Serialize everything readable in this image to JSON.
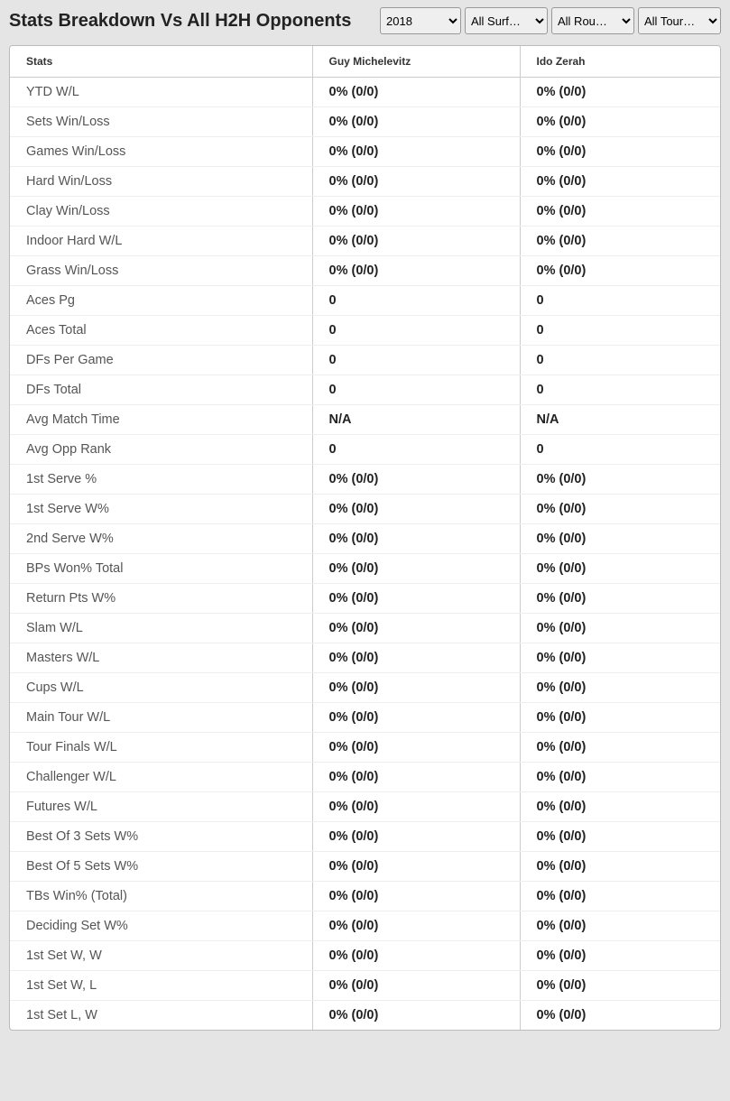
{
  "header": {
    "title": "Stats Breakdown Vs All H2H Opponents"
  },
  "filters": {
    "year": {
      "value": "2018",
      "options": [
        "2018"
      ]
    },
    "surface": {
      "value": "All Surf…",
      "options": [
        "All Surf…"
      ]
    },
    "round": {
      "value": "All Rou…",
      "options": [
        "All Rou…"
      ]
    },
    "tour": {
      "value": "All Tour…",
      "options": [
        "All Tour…"
      ]
    }
  },
  "table": {
    "columns": [
      "Stats",
      "Guy Michelevitz",
      "Ido Zerah"
    ],
    "rows": [
      {
        "label": "YTD W/L",
        "p1": "0% (0/0)",
        "p2": "0% (0/0)"
      },
      {
        "label": "Sets Win/Loss",
        "p1": "0% (0/0)",
        "p2": "0% (0/0)"
      },
      {
        "label": "Games Win/Loss",
        "p1": "0% (0/0)",
        "p2": "0% (0/0)"
      },
      {
        "label": "Hard Win/Loss",
        "p1": "0% (0/0)",
        "p2": "0% (0/0)"
      },
      {
        "label": "Clay Win/Loss",
        "p1": "0% (0/0)",
        "p2": "0% (0/0)"
      },
      {
        "label": "Indoor Hard W/L",
        "p1": "0% (0/0)",
        "p2": "0% (0/0)"
      },
      {
        "label": "Grass Win/Loss",
        "p1": "0% (0/0)",
        "p2": "0% (0/0)"
      },
      {
        "label": "Aces Pg",
        "p1": "0",
        "p2": "0"
      },
      {
        "label": "Aces Total",
        "p1": "0",
        "p2": "0"
      },
      {
        "label": "DFs Per Game",
        "p1": "0",
        "p2": "0"
      },
      {
        "label": "DFs Total",
        "p1": "0",
        "p2": "0"
      },
      {
        "label": "Avg Match Time",
        "p1": "N/A",
        "p2": "N/A"
      },
      {
        "label": "Avg Opp Rank",
        "p1": "0",
        "p2": "0"
      },
      {
        "label": "1st Serve %",
        "p1": "0% (0/0)",
        "p2": "0% (0/0)"
      },
      {
        "label": "1st Serve W%",
        "p1": "0% (0/0)",
        "p2": "0% (0/0)"
      },
      {
        "label": "2nd Serve W%",
        "p1": "0% (0/0)",
        "p2": "0% (0/0)"
      },
      {
        "label": "BPs Won% Total",
        "p1": "0% (0/0)",
        "p2": "0% (0/0)"
      },
      {
        "label": "Return Pts W%",
        "p1": "0% (0/0)",
        "p2": "0% (0/0)"
      },
      {
        "label": "Slam W/L",
        "p1": "0% (0/0)",
        "p2": "0% (0/0)"
      },
      {
        "label": "Masters W/L",
        "p1": "0% (0/0)",
        "p2": "0% (0/0)"
      },
      {
        "label": "Cups W/L",
        "p1": "0% (0/0)",
        "p2": "0% (0/0)"
      },
      {
        "label": "Main Tour W/L",
        "p1": "0% (0/0)",
        "p2": "0% (0/0)"
      },
      {
        "label": "Tour Finals W/L",
        "p1": "0% (0/0)",
        "p2": "0% (0/0)"
      },
      {
        "label": "Challenger W/L",
        "p1": "0% (0/0)",
        "p2": "0% (0/0)"
      },
      {
        "label": "Futures W/L",
        "p1": "0% (0/0)",
        "p2": "0% (0/0)"
      },
      {
        "label": "Best Of 3 Sets W%",
        "p1": "0% (0/0)",
        "p2": "0% (0/0)"
      },
      {
        "label": "Best Of 5 Sets W%",
        "p1": "0% (0/0)",
        "p2": "0% (0/0)"
      },
      {
        "label": "TBs Win% (Total)",
        "p1": "0% (0/0)",
        "p2": "0% (0/0)"
      },
      {
        "label": "Deciding Set W%",
        "p1": "0% (0/0)",
        "p2": "0% (0/0)"
      },
      {
        "label": "1st Set W, W",
        "p1": "0% (0/0)",
        "p2": "0% (0/0)"
      },
      {
        "label": "1st Set W, L",
        "p1": "0% (0/0)",
        "p2": "0% (0/0)"
      },
      {
        "label": "1st Set L, W",
        "p1": "0% (0/0)",
        "p2": "0% (0/0)"
      }
    ]
  }
}
